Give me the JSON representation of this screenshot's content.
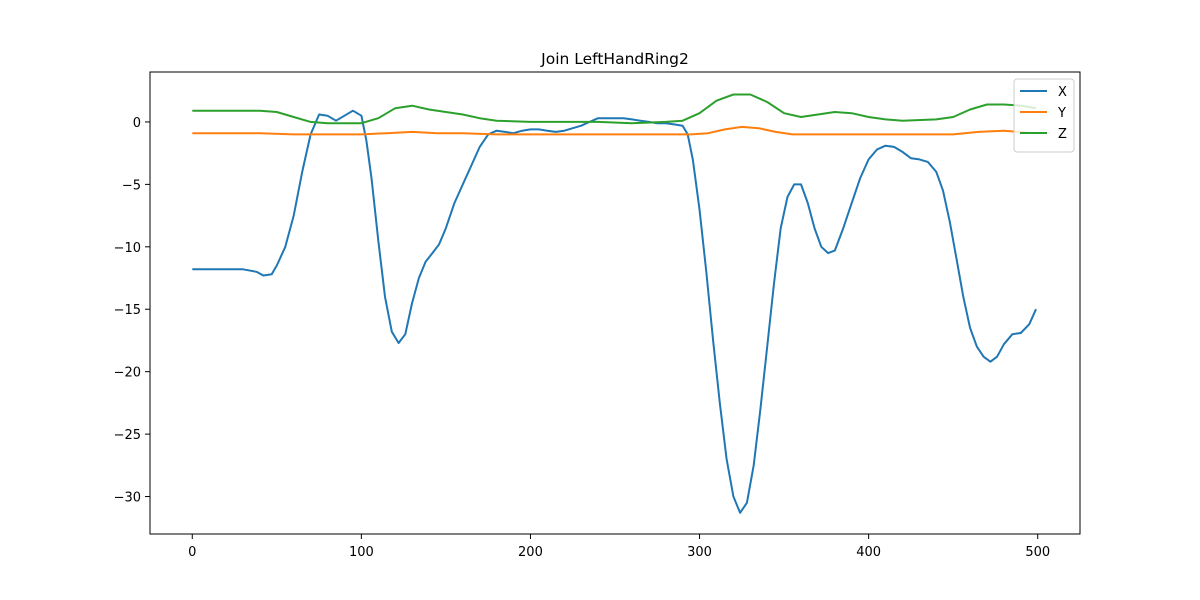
{
  "chart_data": {
    "type": "line",
    "title": "Join LeftHandRing2",
    "xlabel": "",
    "ylabel": "",
    "xlim": [
      -25,
      525
    ],
    "ylim": [
      -33,
      4
    ],
    "xticks": [
      0,
      100,
      200,
      300,
      400,
      500
    ],
    "yticks": [
      0,
      -5,
      -10,
      -15,
      -20,
      -25,
      -30
    ],
    "grid": false,
    "legend_position": "top-right",
    "series": [
      {
        "name": "X",
        "color": "#1f77b4",
        "x": [
          0,
          15,
          30,
          38,
          42,
          47,
          50,
          55,
          60,
          65,
          70,
          75,
          80,
          85,
          90,
          95,
          100,
          103,
          106,
          110,
          114,
          118,
          122,
          126,
          130,
          134,
          138,
          142,
          146,
          150,
          155,
          160,
          165,
          170,
          175,
          180,
          185,
          190,
          195,
          200,
          205,
          210,
          215,
          220,
          225,
          230,
          235,
          240,
          245,
          250,
          255,
          260,
          265,
          270,
          275,
          280,
          285,
          290,
          293,
          296,
          300,
          304,
          308,
          312,
          316,
          320,
          324,
          328,
          332,
          336,
          340,
          344,
          348,
          352,
          356,
          360,
          364,
          368,
          372,
          376,
          380,
          385,
          390,
          395,
          400,
          405,
          410,
          415,
          420,
          425,
          430,
          435,
          440,
          444,
          448,
          452,
          456,
          460,
          464,
          468,
          472,
          476,
          480,
          485,
          490,
          495,
          499
        ],
        "y": [
          -11.8,
          -11.8,
          -11.8,
          -12.0,
          -12.3,
          -12.2,
          -11.5,
          -10.0,
          -7.5,
          -4.0,
          -1.0,
          0.6,
          0.5,
          0.1,
          0.5,
          0.9,
          0.5,
          -1.5,
          -4.5,
          -9.5,
          -14.0,
          -16.8,
          -17.7,
          -17.0,
          -14.5,
          -12.5,
          -11.2,
          -10.5,
          -9.8,
          -8.5,
          -6.5,
          -5.0,
          -3.5,
          -2.0,
          -1.0,
          -0.7,
          -0.8,
          -0.9,
          -0.7,
          -0.6,
          -0.6,
          -0.7,
          -0.8,
          -0.7,
          -0.5,
          -0.3,
          0.0,
          0.3,
          0.3,
          0.3,
          0.3,
          0.2,
          0.1,
          0.0,
          -0.1,
          -0.1,
          -0.2,
          -0.3,
          -1.0,
          -3.0,
          -7.0,
          -12.0,
          -17.5,
          -22.5,
          -27.0,
          -30.0,
          -31.3,
          -30.5,
          -27.5,
          -23.0,
          -18.0,
          -13.0,
          -8.5,
          -6.0,
          -5.0,
          -5.0,
          -6.5,
          -8.5,
          -10.0,
          -10.5,
          -10.3,
          -8.5,
          -6.5,
          -4.5,
          -3.0,
          -2.2,
          -1.9,
          -2.0,
          -2.4,
          -2.9,
          -3.0,
          -3.2,
          -4.0,
          -5.5,
          -8.0,
          -11.0,
          -14.0,
          -16.5,
          -18.0,
          -18.8,
          -19.2,
          -18.8,
          -17.8,
          -17.0,
          -16.9,
          -16.2,
          -15.0
        ]
      },
      {
        "name": "Y",
        "color": "#ff7f0e",
        "x": [
          0,
          20,
          40,
          60,
          80,
          100,
          115,
          130,
          145,
          160,
          180,
          200,
          220,
          240,
          260,
          280,
          295,
          305,
          315,
          325,
          335,
          345,
          355,
          370,
          390,
          410,
          430,
          450,
          465,
          480,
          499
        ],
        "y": [
          -0.9,
          -0.9,
          -0.9,
          -1.0,
          -1.0,
          -1.0,
          -0.9,
          -0.8,
          -0.9,
          -0.9,
          -1.0,
          -1.0,
          -1.0,
          -1.0,
          -1.0,
          -1.0,
          -1.0,
          -0.9,
          -0.6,
          -0.4,
          -0.5,
          -0.8,
          -1.0,
          -1.0,
          -1.0,
          -1.0,
          -1.0,
          -1.0,
          -0.8,
          -0.7,
          -0.9
        ]
      },
      {
        "name": "Z",
        "color": "#2ca02c",
        "x": [
          0,
          20,
          40,
          50,
          60,
          70,
          80,
          90,
          100,
          110,
          120,
          130,
          140,
          160,
          170,
          180,
          200,
          220,
          240,
          260,
          280,
          290,
          300,
          310,
          320,
          330,
          340,
          350,
          360,
          370,
          380,
          390,
          400,
          410,
          420,
          440,
          450,
          460,
          470,
          480,
          490,
          499
        ],
        "y": [
          0.9,
          0.9,
          0.9,
          0.8,
          0.4,
          0.0,
          -0.1,
          -0.1,
          -0.1,
          0.3,
          1.1,
          1.3,
          1.0,
          0.6,
          0.3,
          0.1,
          0.0,
          0.0,
          0.0,
          -0.1,
          0.0,
          0.1,
          0.7,
          1.7,
          2.2,
          2.2,
          1.6,
          0.7,
          0.4,
          0.6,
          0.8,
          0.7,
          0.4,
          0.2,
          0.1,
          0.2,
          0.4,
          1.0,
          1.4,
          1.4,
          1.3,
          1.1
        ]
      }
    ]
  }
}
